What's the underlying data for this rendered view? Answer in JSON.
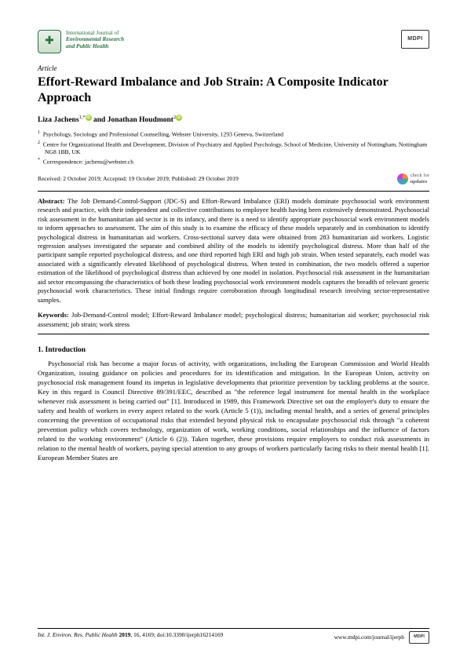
{
  "journal": {
    "line1": "International Journal of",
    "line2": "Environmental Research",
    "line3": "and Public Health",
    "logo_glyph": "✚",
    "publisher_label": "MDPI"
  },
  "article_type": "Article",
  "title": "Effort-Reward Imbalance and Job Strain: A Composite Indicator Approach",
  "authors": {
    "a1_name": "Liza Jachens",
    "a1_sup": "1,*",
    "a2_name": "Jonathan Houdmont",
    "a2_sup": "2",
    "conj": " and "
  },
  "affiliations": {
    "aff1_sup": "1",
    "aff1": "Psychology, Sociology and Professional Counselling, Webster University, 1293 Geneva, Switzerland",
    "aff2_sup": "2",
    "aff2": "Centre for Organizational Health and Development, Division of Psychiatry and Applied Psychology, School of Medicine, University of Nottingham, Nottingham NG8 1BB, UK",
    "corr_sup": "*",
    "corr": "Correspondence: jachens@webster.ch"
  },
  "dates": "Received: 2 October 2019; Accepted: 19 October 2019; Published: 29 October 2019",
  "check_updates": {
    "line1": "check for",
    "line2": "updates"
  },
  "abstract_label": "Abstract:",
  "abstract": " The Job Demand-Control-Support (JDC-S) and Effort-Reward Imbalance (ERI) models dominate psychosocial work environment research and practice, with their independent and collective contributions to employee health having been extensively demonstrated. Psychosocial risk assessment in the humanitarian aid sector is in its infancy, and there is a need to identify appropriate psychosocial work environment models to inform approaches to assessment. The aim of this study is to examine the efficacy of these models separately and in combination to identify psychological distress in humanitarian aid workers. Cross-sectional survey data were obtained from 283 humanitarian aid workers. Logistic regression analyses investigated the separate and combined ability of the models to identify psychological distress. More than half of the participant sample reported psychological distress, and one third reported high ERI and high job strain. When tested separately, each model was associated with a significantly elevated likelihood of psychological distress. When tested in combination, the two models offered a superior estimation of the likelihood of psychological distress than achieved by one model in isolation. Psychosocial risk assessment in the humanitarian aid sector encompassing the characteristics of both these leading psychosocial work environment models captures the breadth of relevant generic psychosocial work characteristics. These initial findings require corroboration through longitudinal research involving sector-representative samples.",
  "keywords_label": "Keywords:",
  "keywords": " Job-Demand-Control model; Effort-Reward Imbalance model; psychological distress; humanitarian aid worker; psychosocial risk assessment; job strain; work stress",
  "section1": "1. Introduction",
  "intro": "Psychosocial risk has become a major focus of activity, with organizations, including the European Commission and World Health Organization, issuing guidance on policies and procedures for its identification and mitigation. In the European Union, activity on psychosocial risk management found its impetus in legislative developments that prioritize prevention by tackling problems at the source. Key in this regard is Council Directive 89/391/EEC, described as \"the reference legal instrument for mental health in the workplace whenever risk assessment is being carried out\" [1]. Introduced in 1989, this Framework Directive set out the employer's duty to ensure the safety and health of workers in every aspect related to the work (Article 5 (1)), including mental health, and a series of general principles concerning the prevention of occupational risks that extended beyond physical risk to encapsulate psychosocial risk through \"a coherent prevention policy which covers technology, organization of work, working conditions, social relationships and the influence of factors related to the working environment\" (Article 6 (2)). Taken together, these provisions require employers to conduct risk assessments in relation to the mental health of workers, paying special attention to any groups of workers particularly facing risks to their mental health [1]. European Member States are",
  "footer": {
    "left_italic": "Int. J. Environ. Res. Public Health ",
    "left_bold": "2019",
    "left_rest": ", 16, 4169; doi:10.3390/ijerph16214169",
    "right": "www.mdpi.com/journal/ijerph"
  },
  "colors": {
    "citation": "#007a3d",
    "journal_green": "#2a6e3f",
    "orcid": "#a6ce39"
  }
}
